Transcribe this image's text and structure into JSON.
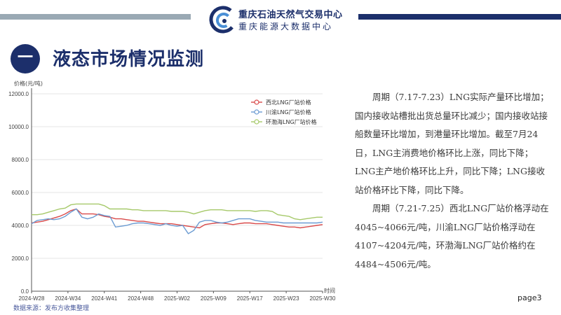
{
  "header": {
    "org_name": "重庆石油天然气交易中心",
    "org_subname": "重庆能源大数据中心",
    "bar_color": "#9aa9b4",
    "right_bar_color": "#1c2f6b"
  },
  "section": {
    "number": "一",
    "title": "液态市场情况监测"
  },
  "chart_data": {
    "type": "line",
    "ylabel": "价格(元/吨)",
    "xlabel": "时间",
    "ylim": [
      0,
      12000
    ],
    "yticks": [
      "0.0",
      "2000.0",
      "4000.0",
      "6000.0",
      "8000.0",
      "10000.0",
      "12000.0"
    ],
    "xticks": [
      "2024-W28",
      "2024-W34",
      "2024-W41",
      "2024-W48",
      "2025-W02",
      "2025-W09",
      "2025-W17",
      "2025-W23",
      "2025-W30"
    ],
    "grid": true,
    "legend_position": "top-right",
    "series": [
      {
        "name": "西北LNG厂站价格",
        "color": "#d94a4a",
        "values": [
          4150,
          4200,
          4250,
          4350,
          4450,
          4550,
          4700,
          4900,
          5000,
          4700,
          4700,
          4700,
          4650,
          4550,
          4500,
          4400,
          4400,
          4350,
          4300,
          4250,
          4250,
          4200,
          4150,
          4100,
          4100,
          4100,
          4050,
          4000,
          3950,
          3900,
          3850,
          4050,
          4100,
          4150,
          4150,
          4100,
          4050,
          4100,
          4150,
          4150,
          4100,
          4100,
          4100,
          4050,
          4000,
          3950,
          3900,
          3900,
          3850,
          3900,
          3950,
          4000,
          4050
        ]
      },
      {
        "name": "川渝LNG厂站价格",
        "color": "#6b9bd2",
        "values": [
          4100,
          4300,
          4350,
          4400,
          4350,
          4400,
          4550,
          4800,
          5000,
          4500,
          4400,
          4500,
          4700,
          4600,
          4550,
          3900,
          3950,
          4000,
          4100,
          4150,
          4150,
          4100,
          4050,
          4000,
          4100,
          4000,
          3950,
          4000,
          3500,
          3700,
          4200,
          4300,
          4300,
          4200,
          4150,
          4200,
          4300,
          4400,
          4400,
          4400,
          4300,
          4250,
          4200,
          4200,
          4200,
          4150,
          4150,
          4150,
          4150,
          4150,
          4150,
          4150,
          4200
        ]
      },
      {
        "name": "环渤海LNG厂站价格",
        "color": "#a6c96a",
        "values": [
          4650,
          4650,
          4700,
          4800,
          4900,
          5000,
          5050,
          5250,
          5300,
          5300,
          5300,
          5300,
          5300,
          5200,
          5000,
          5000,
          5000,
          5000,
          4950,
          4950,
          4900,
          4900,
          4900,
          4900,
          4900,
          4850,
          4850,
          4850,
          4800,
          4700,
          4800,
          4900,
          4950,
          4950,
          4950,
          4900,
          4900,
          4900,
          4900,
          4900,
          4850,
          4900,
          4900,
          4850,
          4650,
          4600,
          4550,
          4400,
          4350,
          4400,
          4450,
          4500,
          4500
        ]
      }
    ]
  },
  "description": {
    "para1": "周期（7.17-7.23）LNG实际产量环比增加；国内接收站槽批出货总量环比减少；国内接收站接船数量环比增加，到港量环比增加。截至7月24日，LNG主消费地价格环比上涨，同比下降；LNG主产地价格环比上升，同比下降；LNG接收站价格环比下降，同比下降。",
    "para2": "周期（7.21-7.25）西北LNG厂站价格浮动在4045~4066元/吨，川渝LNG厂站价格浮动在4107~4204元/吨，环渤海LNG厂站价格约在4484~4506元/吨。"
  },
  "footer": {
    "source": "数据来源：发布方收集整理",
    "page": "page3"
  }
}
